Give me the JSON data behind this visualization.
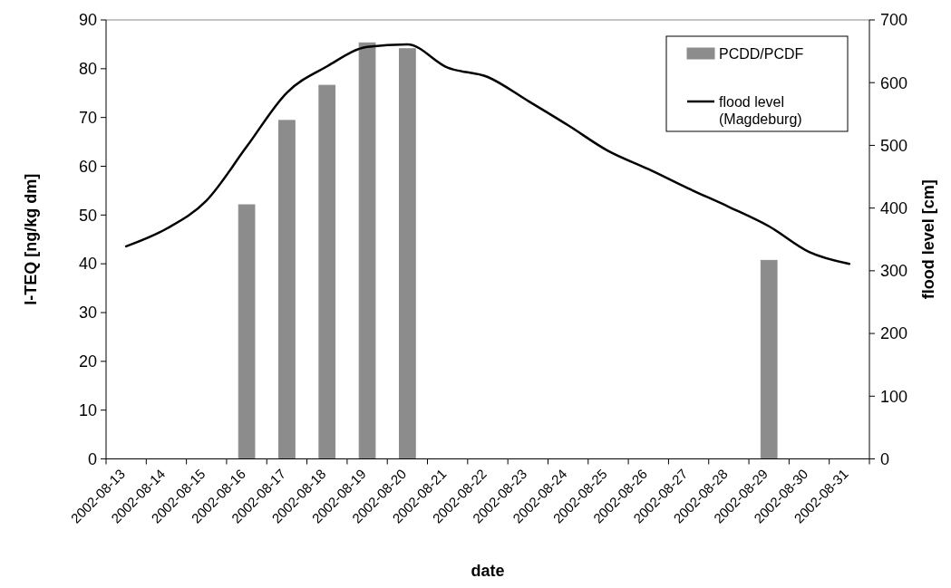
{
  "chart_data": {
    "type": "bar",
    "xlabel": "date",
    "ylabel": "I-TEQ [ng/kg dm]",
    "y2label": "flood level [cm]",
    "categories": [
      "2002-08-13",
      "2002-08-14",
      "2002-08-15",
      "2002-08-16",
      "2002-08-17",
      "2002-08-18",
      "2002-08-19",
      "2002-08-20",
      "2002-08-21",
      "2002-08-22",
      "2002-08-23",
      "2002-08-24",
      "2002-08-25",
      "2002-08-26",
      "2002-08-27",
      "2002-08-28",
      "2002-08-29",
      "2002-08-30",
      "2002-08-31"
    ],
    "series": [
      {
        "name": "PCDD/PCDF",
        "color": "#8c8c8c",
        "values": [
          null,
          null,
          null,
          52.1,
          69.4,
          76.6,
          85.3,
          84.1,
          null,
          null,
          null,
          null,
          null,
          null,
          null,
          null,
          40.7,
          null,
          null
        ]
      },
      {
        "name": "flood level\n(Magdeburg)",
        "type": "line",
        "axis": "y2",
        "color": "#000000",
        "values": [
          339,
          367,
          412,
          498,
          584,
          626,
          657,
          661,
          624,
          609,
          571,
          532,
          491,
          462,
          431,
          402,
          371,
          330,
          311
        ]
      }
    ],
    "ylim": [
      0,
      90
    ],
    "yticks": [
      0,
      10,
      20,
      30,
      40,
      50,
      60,
      70,
      80,
      90
    ],
    "y2lim": [
      0,
      700
    ],
    "y2ticks": [
      0,
      100,
      200,
      300,
      400,
      500,
      600,
      700
    ],
    "legend": "top right",
    "grid": false
  }
}
